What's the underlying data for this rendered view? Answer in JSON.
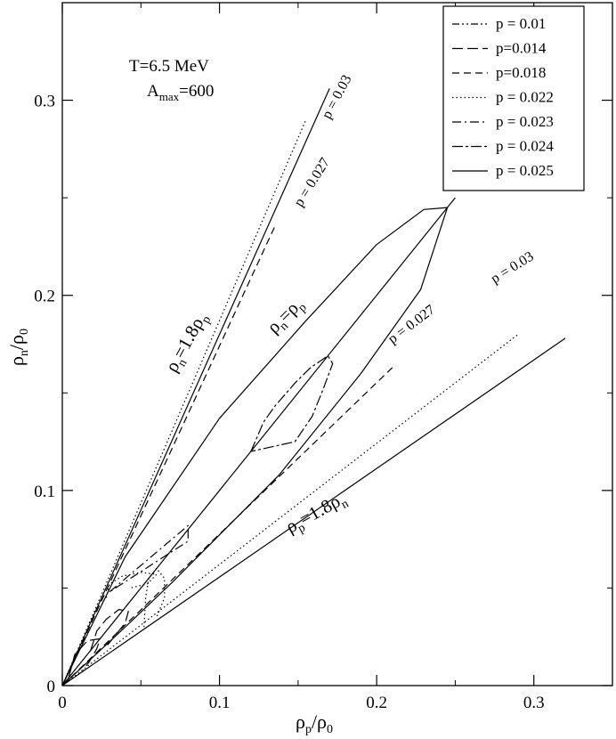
{
  "chart_data": {
    "type": "line",
    "xlabel": "ρp/ρ0",
    "ylabel": "ρn/ρ0",
    "xlim": [
      0,
      0.35
    ],
    "ylim": [
      0,
      0.35
    ],
    "xticks": [
      0,
      0.1,
      0.2,
      0.3
    ],
    "yticks": [
      0,
      0.1,
      0.2,
      0.3
    ],
    "xtick_labels": [
      "0",
      "0.1",
      "0.2",
      "0.3"
    ],
    "ytick_labels": [
      "0",
      "0.1",
      "0.2",
      "0.3"
    ],
    "grid": false,
    "legend_position": "top-right",
    "annotation": {
      "line1": "T=6.5 MeV",
      "line2_main": "A",
      "line2_sub": "max",
      "line2_rest": "=600"
    },
    "legend": [
      {
        "label": "p = 0.01",
        "dash": "dashdotdot"
      },
      {
        "label": "p=0.014",
        "dash": "longdash"
      },
      {
        "label": "p=0.018",
        "dash": "dash"
      },
      {
        "label": "p = 0.022",
        "dash": "dot"
      },
      {
        "label": "p = 0.023",
        "dash": "dashdot"
      },
      {
        "label": "p = 0.024",
        "dash": "dashdot2"
      },
      {
        "label": "p = 0.025",
        "dash": "solid"
      }
    ],
    "series": [
      {
        "dash": "solid",
        "points": [
          [
            0,
            0
          ],
          [
            0.17,
            0.306
          ]
        ]
      },
      {
        "dash": "solid",
        "points": [
          [
            0,
            0
          ],
          [
            0.32,
            0.178
          ]
        ]
      },
      {
        "dash": "solid",
        "points": [
          [
            0,
            0
          ],
          [
            0.25,
            0.25
          ]
        ]
      },
      {
        "dash": "solid",
        "points": [
          [
            0,
            0
          ],
          [
            0.04,
            0.066
          ],
          [
            0.1,
            0.137
          ],
          [
            0.155,
            0.187
          ],
          [
            0.2,
            0.226
          ],
          [
            0.23,
            0.244
          ],
          [
            0.245,
            0.245
          ],
          [
            0.228,
            0.203
          ],
          [
            0.19,
            0.16
          ],
          [
            0.138,
            0.108
          ],
          [
            0.07,
            0.053
          ],
          [
            0.04,
            0.03
          ],
          [
            0,
            0
          ]
        ]
      },
      {
        "dash": "dot",
        "points": [
          [
            0,
            0
          ],
          [
            0.155,
            0.29
          ]
        ]
      },
      {
        "dash": "dot",
        "points": [
          [
            0,
            0
          ],
          [
            0.29,
            0.18
          ]
        ]
      },
      {
        "dash": "dash",
        "points": [
          [
            0,
            0
          ],
          [
            0.135,
            0.235
          ]
        ]
      },
      {
        "dash": "dash",
        "points": [
          [
            0,
            0
          ],
          [
            0.21,
            0.163
          ]
        ]
      },
      {
        "dash": "dashdot",
        "points": [
          [
            0.03,
            0.048
          ],
          [
            0.08,
            0.082
          ],
          [
            0.08,
            0.074
          ],
          [
            0.03,
            0.048
          ]
        ]
      },
      {
        "dash": "dashdot2",
        "points": [
          [
            0.12,
            0.12
          ],
          [
            0.128,
            0.135
          ],
          [
            0.135,
            0.143
          ],
          [
            0.148,
            0.155
          ],
          [
            0.158,
            0.163
          ],
          [
            0.169,
            0.169
          ],
          [
            0.172,
            0.165
          ],
          [
            0.166,
            0.152
          ],
          [
            0.159,
            0.138
          ],
          [
            0.148,
            0.125
          ],
          [
            0.12,
            0.12
          ]
        ]
      },
      {
        "dash": "longdash",
        "points": [
          [
            0.004,
            0.004
          ],
          [
            0.008,
            0.016
          ],
          [
            0.016,
            0.023
          ],
          [
            0.024,
            0.024
          ],
          [
            0.022,
            0.019
          ],
          [
            0.017,
            0.012
          ],
          [
            0.013,
            0.008
          ]
        ]
      },
      {
        "dash": "longdash",
        "points": [
          [
            0.018,
            0.018
          ],
          [
            0.022,
            0.028
          ],
          [
            0.028,
            0.034
          ],
          [
            0.036,
            0.039
          ],
          [
            0.042,
            0.038
          ],
          [
            0.04,
            0.032
          ],
          [
            0.034,
            0.026
          ],
          [
            0.028,
            0.02
          ]
        ]
      },
      {
        "dash": "dot",
        "points": [
          [
            0.052,
            0.03
          ],
          [
            0.053,
            0.045
          ],
          [
            0.055,
            0.055
          ],
          [
            0.06,
            0.06
          ],
          [
            0.065,
            0.055
          ],
          [
            0.065,
            0.045
          ],
          [
            0.06,
            0.035
          ]
        ]
      },
      {
        "dash": "dot",
        "points": [
          [
            0.028,
            0.045
          ],
          [
            0.03,
            0.052
          ],
          [
            0.038,
            0.056
          ],
          [
            0.05,
            0.058
          ],
          [
            0.06,
            0.057
          ],
          [
            0.054,
            0.052
          ],
          [
            0.043,
            0.05
          ]
        ]
      }
    ],
    "line_labels": [
      {
        "text": "p = 0.03",
        "x": 0.17,
        "y": 0.29,
        "angle": -62
      },
      {
        "text": "p = 0.027",
        "x": 0.152,
        "y": 0.245,
        "angle": -58
      },
      {
        "text": "p = 0.027",
        "x": 0.21,
        "y": 0.175,
        "angle": -37
      },
      {
        "text": "p = 0.03",
        "x": 0.275,
        "y": 0.206,
        "angle": -32
      },
      {
        "text": "ρn=1.8ρp",
        "x": 0.072,
        "y": 0.16,
        "angle": -61
      },
      {
        "text": "ρn=ρp",
        "x": 0.135,
        "y": 0.18,
        "angle": -45
      },
      {
        "text": "ρp=1.8ρn",
        "x": 0.145,
        "y": 0.078,
        "angle": -29
      }
    ]
  }
}
